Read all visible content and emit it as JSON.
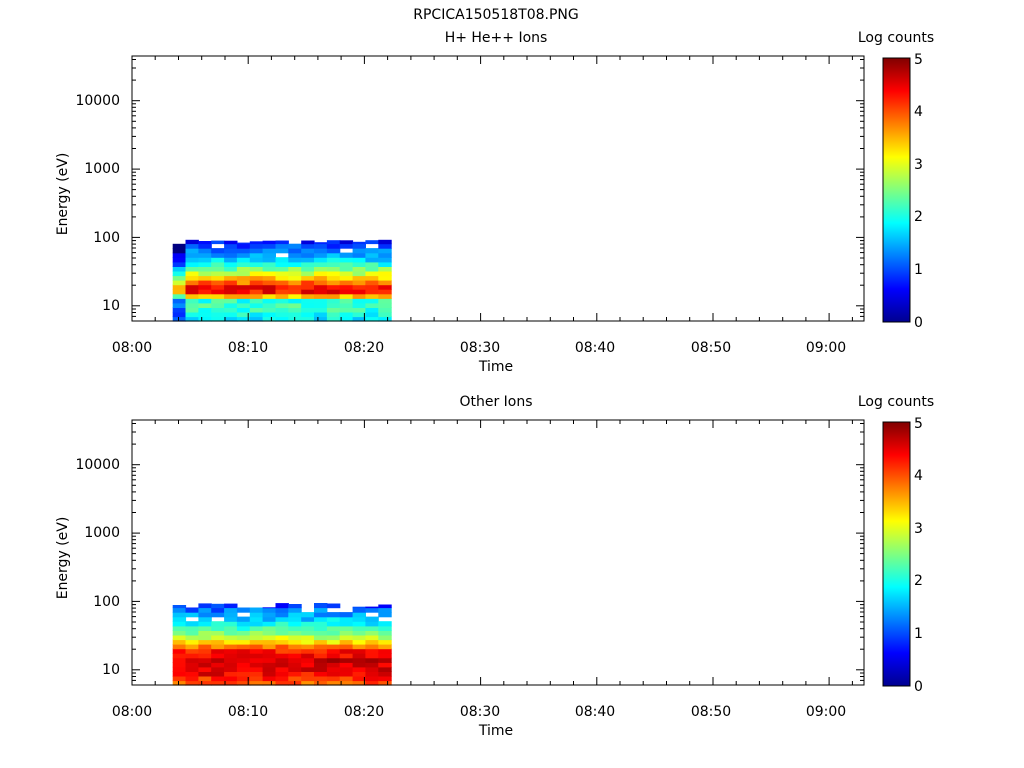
{
  "figure_title": "RPCICA150518T08.PNG",
  "chart_data": [
    {
      "type": "heatmap",
      "title": "H+ He++ Ions",
      "xlabel": "Time",
      "ylabel": "Energy (eV)",
      "x_range": [
        "08:00",
        "09:03"
      ],
      "x_ticks": [
        "08:00",
        "08:10",
        "08:20",
        "08:30",
        "08:40",
        "08:50",
        "09:00"
      ],
      "y_scale": "log",
      "y_range": [
        6,
        45000
      ],
      "y_ticks": [
        "10",
        "100",
        "1000",
        "10000"
      ],
      "colorbar": {
        "label": "Log counts",
        "min": 0,
        "max": 5,
        "ticks": [
          "0",
          "1",
          "2",
          "3",
          "4",
          "5"
        ]
      },
      "data_time_range": [
        "08:03.5",
        "08:22.3"
      ],
      "data_energy_range_eV": [
        6,
        95
      ],
      "log_counts_profile": [
        [
          6,
          1.8
        ],
        [
          8,
          2.0
        ],
        [
          10,
          2.2
        ],
        [
          12,
          2.1
        ],
        [
          14,
          3.4
        ],
        [
          16,
          4.3
        ],
        [
          18,
          4.5
        ],
        [
          20,
          4.2
        ],
        [
          24,
          3.6
        ],
        [
          28,
          3.1
        ],
        [
          33,
          2.6
        ],
        [
          40,
          2.1
        ],
        [
          48,
          1.7
        ],
        [
          58,
          1.4
        ],
        [
          70,
          1.1
        ],
        [
          85,
          0.8
        ],
        [
          95,
          0.5
        ]
      ]
    },
    {
      "type": "heatmap",
      "title": "Other Ions",
      "xlabel": "Time",
      "ylabel": "Energy (eV)",
      "x_range": [
        "08:00",
        "09:03"
      ],
      "x_ticks": [
        "08:00",
        "08:10",
        "08:20",
        "08:30",
        "08:40",
        "08:50",
        "09:00"
      ],
      "y_scale": "log",
      "y_range": [
        6,
        45000
      ],
      "y_ticks": [
        "10",
        "100",
        "1000",
        "10000"
      ],
      "colorbar": {
        "label": "Log counts",
        "min": 0,
        "max": 5,
        "ticks": [
          "0",
          "1",
          "2",
          "3",
          "4",
          "5"
        ]
      },
      "data_time_range": [
        "08:03.5",
        "08:22.3"
      ],
      "data_energy_range_eV": [
        6,
        95
      ],
      "log_counts_profile": [
        [
          6,
          3.8
        ],
        [
          8,
          4.3
        ],
        [
          10,
          4.5
        ],
        [
          12,
          4.6
        ],
        [
          14,
          4.6
        ],
        [
          16,
          4.5
        ],
        [
          18,
          4.4
        ],
        [
          20,
          4.2
        ],
        [
          24,
          3.5
        ],
        [
          28,
          3.0
        ],
        [
          33,
          2.6
        ],
        [
          40,
          2.2
        ],
        [
          48,
          1.9
        ],
        [
          58,
          1.6
        ],
        [
          70,
          1.3
        ],
        [
          85,
          1.0
        ],
        [
          95,
          0.6
        ]
      ]
    }
  ]
}
